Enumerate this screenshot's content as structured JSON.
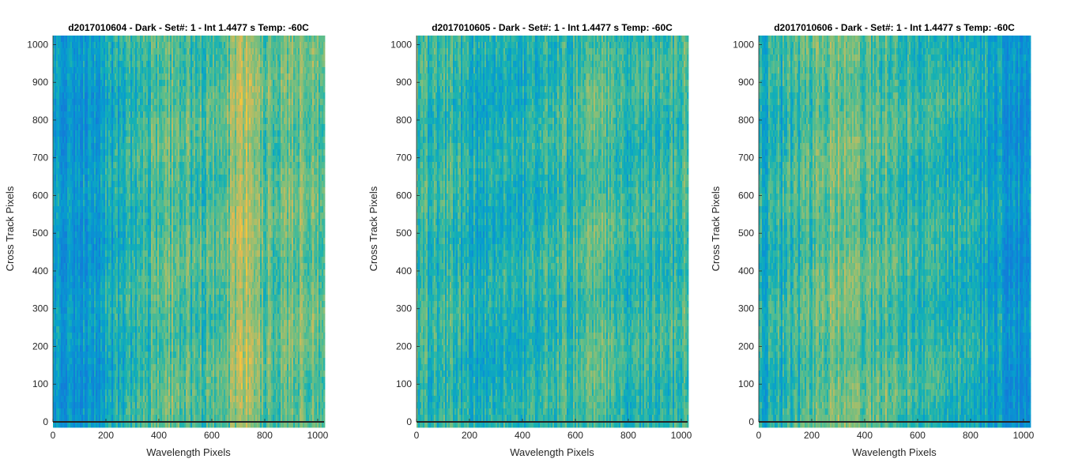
{
  "chart_data": [
    {
      "type": "heatmap",
      "title": "d2017010604 - Dark - Set#: 1 - Int 1.4477 s Temp: -60C",
      "xlabel": "Wavelength Pixels",
      "ylabel": "Cross Track Pixels",
      "xlim": [
        0,
        1024
      ],
      "ylim": [
        0,
        1024
      ],
      "x_ticks": [
        0,
        200,
        400,
        600,
        800,
        1000
      ],
      "y_ticks": [
        0,
        100,
        200,
        300,
        400,
        500,
        600,
        700,
        800,
        900,
        1000
      ],
      "grid": false,
      "colormap": "parula",
      "column_profile": [
        {
          "x": 0,
          "level": 0.3
        },
        {
          "x": 100,
          "level": 0.18
        },
        {
          "x": 200,
          "level": 0.3
        },
        {
          "x": 300,
          "level": 0.42
        },
        {
          "x": 400,
          "level": 0.55
        },
        {
          "x": 450,
          "level": 0.6
        },
        {
          "x": 550,
          "level": 0.5
        },
        {
          "x": 650,
          "level": 0.58
        },
        {
          "x": 700,
          "level": 0.8
        },
        {
          "x": 750,
          "level": 0.78
        },
        {
          "x": 800,
          "level": 0.58
        },
        {
          "x": 900,
          "level": 0.62
        },
        {
          "x": 1024,
          "level": 0.58
        }
      ]
    },
    {
      "type": "heatmap",
      "title": "d2017010605 - Dark - Set#: 1 - Int 1.4477 s Temp: -60C",
      "xlabel": "Wavelength Pixels",
      "ylabel": "Cross Track Pixels",
      "xlim": [
        0,
        1024
      ],
      "ylim": [
        0,
        1024
      ],
      "x_ticks": [
        0,
        200,
        400,
        600,
        800,
        1000
      ],
      "y_ticks": [
        0,
        100,
        200,
        300,
        400,
        500,
        600,
        700,
        800,
        900,
        1000
      ],
      "grid": false,
      "colormap": "parula",
      "column_profile": [
        {
          "x": 0,
          "level": 0.48
        },
        {
          "x": 100,
          "level": 0.45
        },
        {
          "x": 200,
          "level": 0.4
        },
        {
          "x": 300,
          "level": 0.36
        },
        {
          "x": 400,
          "level": 0.4
        },
        {
          "x": 500,
          "level": 0.42
        },
        {
          "x": 600,
          "level": 0.52
        },
        {
          "x": 650,
          "level": 0.62
        },
        {
          "x": 700,
          "level": 0.55
        },
        {
          "x": 800,
          "level": 0.45
        },
        {
          "x": 900,
          "level": 0.48
        },
        {
          "x": 1024,
          "level": 0.52
        }
      ]
    },
    {
      "type": "heatmap",
      "title": "d2017010606 - Dark - Set#: 1 - Int 1.4477 s Temp: -60C",
      "xlabel": "Wavelength Pixels",
      "ylabel": "Cross Track Pixels",
      "xlim": [
        0,
        1024
      ],
      "ylim": [
        0,
        1024
      ],
      "x_ticks": [
        0,
        200,
        400,
        600,
        800,
        1000
      ],
      "y_ticks": [
        0,
        100,
        200,
        300,
        400,
        500,
        600,
        700,
        800,
        900,
        1000
      ],
      "grid": false,
      "colormap": "parula",
      "column_profile": [
        {
          "x": 0,
          "level": 0.4
        },
        {
          "x": 100,
          "level": 0.42
        },
        {
          "x": 200,
          "level": 0.52
        },
        {
          "x": 300,
          "level": 0.66
        },
        {
          "x": 400,
          "level": 0.55
        },
        {
          "x": 500,
          "level": 0.58
        },
        {
          "x": 600,
          "level": 0.45
        },
        {
          "x": 700,
          "level": 0.42
        },
        {
          "x": 800,
          "level": 0.4
        },
        {
          "x": 880,
          "level": 0.3
        },
        {
          "x": 950,
          "level": 0.18
        },
        {
          "x": 1024,
          "level": 0.16
        }
      ]
    }
  ]
}
